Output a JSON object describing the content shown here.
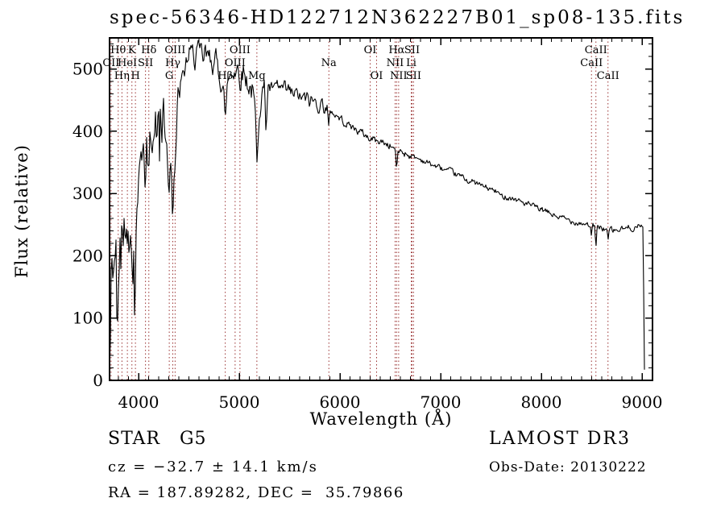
{
  "chart_data": {
    "type": "line",
    "title": "spec-56346-HD122712N362227B01_sp08-135.fits",
    "xlabel": "Wavelength (Å)",
    "ylabel": "Flux (relative)",
    "xlim": [
      3712,
      9104
    ],
    "ylim": [
      0,
      550
    ],
    "x_ticks": [
      4000,
      5000,
      6000,
      7000,
      8000,
      9000
    ],
    "x_minor_step": 100,
    "y_ticks": [
      0,
      100,
      200,
      300,
      400,
      500
    ],
    "y_minor_step": 20,
    "grid": false,
    "axis_color": "#000000",
    "line_marker_color": "#9b3333",
    "spectrum_color": "#000000",
    "spectral_lines": [
      {
        "label": "OII",
        "wavelength": 3727,
        "row": 2
      },
      {
        "label": "Hθ",
        "wavelength": 3798,
        "row": 1
      },
      {
        "label": "Hη",
        "wavelength": 3835,
        "row": 3
      },
      {
        "label": "HeI",
        "wavelength": 3889,
        "row": 2
      },
      {
        "label": "K",
        "wavelength": 3934,
        "row": 1
      },
      {
        "label": "H",
        "wavelength": 3969,
        "row": 3
      },
      {
        "label": "SII",
        "wavelength": 4069,
        "row": 2
      },
      {
        "label": "Hδ",
        "wavelength": 4102,
        "row": 1
      },
      {
        "label": "G",
        "wavelength": 4305,
        "row": 3
      },
      {
        "label": "Hγ",
        "wavelength": 4340,
        "row": 2
      },
      {
        "label": "OIII",
        "wavelength": 4363,
        "row": 1
      },
      {
        "label": "Hβ",
        "wavelength": 4861,
        "row": 3
      },
      {
        "label": "OIII",
        "wavelength": 4959,
        "row": 2
      },
      {
        "label": "OIII",
        "wavelength": 5007,
        "row": 1
      },
      {
        "label": "Mg",
        "wavelength": 5175,
        "row": 3
      },
      {
        "label": "Na",
        "wavelength": 5890,
        "row": 2
      },
      {
        "label": "OI",
        "wavelength": 6300,
        "row": 1
      },
      {
        "label": "OI",
        "wavelength": 6364,
        "row": 3
      },
      {
        "label": "NII",
        "wavelength": 6548,
        "row": 2
      },
      {
        "label": "Hα",
        "wavelength": 6563,
        "row": 1
      },
      {
        "label": "NII",
        "wavelength": 6583,
        "row": 3
      },
      {
        "label": "Li",
        "wavelength": 6708,
        "row": 2
      },
      {
        "label": "SII",
        "wavelength": 6716,
        "row": 1
      },
      {
        "label": "SII",
        "wavelength": 6731,
        "row": 3
      },
      {
        "label": "CaII",
        "wavelength": 8498,
        "row": 2
      },
      {
        "label": "CaII",
        "wavelength": 8542,
        "row": 1
      },
      {
        "label": "CaII",
        "wavelength": 8662,
        "row": 3
      }
    ],
    "spectrum": {
      "seed": 42,
      "anchors": [
        [
          3712,
          15
        ],
        [
          3716,
          120
        ],
        [
          3720,
          60
        ],
        [
          3726,
          200
        ],
        [
          3732,
          90
        ],
        [
          3738,
          235
        ],
        [
          3744,
          150
        ],
        [
          3750,
          225
        ],
        [
          3756,
          60
        ],
        [
          3762,
          210
        ],
        [
          3770,
          190
        ],
        [
          3778,
          235
        ],
        [
          3786,
          140
        ],
        [
          3798,
          150
        ],
        [
          3806,
          215
        ],
        [
          3814,
          240
        ],
        [
          3822,
          205
        ],
        [
          3830,
          250
        ],
        [
          3840,
          215
        ],
        [
          3850,
          255
        ],
        [
          3862,
          245
        ],
        [
          3874,
          260
        ],
        [
          3882,
          235
        ],
        [
          3889,
          215
        ],
        [
          3896,
          255
        ],
        [
          3905,
          245
        ],
        [
          3915,
          215
        ],
        [
          3925,
          195
        ],
        [
          3934,
          95
        ],
        [
          3944,
          215
        ],
        [
          3954,
          205
        ],
        [
          3962,
          150
        ],
        [
          3969,
          90
        ],
        [
          3978,
          225
        ],
        [
          3988,
          280
        ],
        [
          3998,
          320
        ],
        [
          4010,
          355
        ],
        [
          4025,
          385
        ],
        [
          4040,
          360
        ],
        [
          4055,
          340
        ],
        [
          4069,
          300
        ],
        [
          4080,
          370
        ],
        [
          4092,
          355
        ],
        [
          4102,
          300
        ],
        [
          4112,
          370
        ],
        [
          4125,
          395
        ],
        [
          4140,
          380
        ],
        [
          4155,
          405
        ],
        [
          4170,
          420
        ],
        [
          4185,
          395
        ],
        [
          4200,
          415
        ],
        [
          4215,
          430
        ],
        [
          4230,
          410
        ],
        [
          4245,
          425
        ],
        [
          4260,
          405
        ],
        [
          4275,
          390
        ],
        [
          4290,
          345
        ],
        [
          4305,
          300
        ],
        [
          4318,
          360
        ],
        [
          4332,
          330
        ],
        [
          4340,
          250
        ],
        [
          4352,
          345
        ],
        [
          4365,
          390
        ],
        [
          4380,
          425
        ],
        [
          4395,
          455
        ],
        [
          4410,
          465
        ],
        [
          4425,
          480
        ],
        [
          4440,
          475
        ],
        [
          4455,
          495
        ],
        [
          4470,
          505
        ],
        [
          4485,
          520
        ],
        [
          4500,
          515
        ],
        [
          4515,
          525
        ],
        [
          4530,
          510
        ],
        [
          4545,
          530
        ],
        [
          4560,
          520
        ],
        [
          4575,
          535
        ],
        [
          4590,
          525
        ],
        [
          4605,
          515
        ],
        [
          4620,
          520
        ],
        [
          4635,
          505
        ],
        [
          4650,
          515
        ],
        [
          4665,
          525
        ],
        [
          4680,
          510
        ],
        [
          4695,
          520
        ],
        [
          4710,
          515
        ],
        [
          4725,
          525
        ],
        [
          4740,
          515
        ],
        [
          4755,
          505
        ],
        [
          4770,
          510
        ],
        [
          4785,
          500
        ],
        [
          4800,
          495
        ],
        [
          4815,
          490
        ],
        [
          4830,
          485
        ],
        [
          4845,
          475
        ],
        [
          4861,
          395
        ],
        [
          4875,
          465
        ],
        [
          4890,
          480
        ],
        [
          4905,
          490
        ],
        [
          4920,
          495
        ],
        [
          4935,
          500
        ],
        [
          4950,
          505
        ],
        [
          4965,
          500
        ],
        [
          4980,
          505
        ],
        [
          4995,
          495
        ],
        [
          5010,
          490
        ],
        [
          5025,
          495
        ],
        [
          5040,
          500
        ],
        [
          5055,
          490
        ],
        [
          5070,
          485
        ],
        [
          5085,
          480
        ],
        [
          5100,
          475
        ],
        [
          5115,
          470
        ],
        [
          5130,
          465
        ],
        [
          5145,
          445
        ],
        [
          5160,
          420
        ],
        [
          5175,
          335
        ],
        [
          5188,
          400
        ],
        [
          5200,
          445
        ],
        [
          5215,
          460
        ],
        [
          5230,
          470
        ],
        [
          5245,
          465
        ],
        [
          5255,
          460
        ],
        [
          5266,
          395
        ],
        [
          5278,
          455
        ],
        [
          5290,
          475
        ],
        [
          5305,
          470
        ],
        [
          5320,
          465
        ],
        [
          5335,
          470
        ],
        [
          5350,
          462
        ],
        [
          5365,
          468
        ],
        [
          5380,
          472
        ],
        [
          5395,
          468
        ],
        [
          5410,
          465
        ],
        [
          5425,
          470
        ],
        [
          5440,
          462
        ],
        [
          5455,
          466
        ],
        [
          5470,
          460
        ],
        [
          5485,
          464
        ],
        [
          5500,
          462
        ],
        [
          5515,
          458
        ],
        [
          5530,
          462
        ],
        [
          5545,
          456
        ],
        [
          5560,
          460
        ],
        [
          5575,
          455
        ],
        [
          5590,
          458
        ],
        [
          5605,
          452
        ],
        [
          5620,
          455
        ],
        [
          5635,
          450
        ],
        [
          5650,
          453
        ],
        [
          5665,
          448
        ],
        [
          5680,
          452
        ],
        [
          5695,
          447
        ],
        [
          5710,
          450
        ],
        [
          5725,
          446
        ],
        [
          5740,
          449
        ],
        [
          5755,
          445
        ],
        [
          5770,
          448
        ],
        [
          5785,
          444
        ],
        [
          5800,
          447
        ],
        [
          5815,
          443
        ],
        [
          5830,
          445
        ],
        [
          5845,
          441
        ],
        [
          5860,
          440
        ],
        [
          5875,
          437
        ],
        [
          5890,
          392
        ],
        [
          5902,
          430
        ],
        [
          5915,
          433
        ],
        [
          5930,
          430
        ],
        [
          5945,
          428
        ],
        [
          5960,
          426
        ],
        [
          5975,
          424
        ],
        [
          5990,
          422
        ],
        [
          6010,
          420
        ],
        [
          6030,
          417
        ],
        [
          6050,
          415
        ],
        [
          6070,
          412
        ],
        [
          6090,
          410
        ],
        [
          6110,
          408
        ],
        [
          6130,
          406
        ],
        [
          6150,
          404
        ],
        [
          6170,
          402
        ],
        [
          6190,
          400
        ],
        [
          6210,
          398
        ],
        [
          6230,
          396
        ],
        [
          6250,
          394
        ],
        [
          6270,
          392
        ],
        [
          6290,
          390
        ],
        [
          6300,
          382
        ],
        [
          6310,
          389
        ],
        [
          6330,
          388
        ],
        [
          6350,
          387
        ],
        [
          6364,
          381
        ],
        [
          6378,
          386
        ],
        [
          6400,
          384
        ],
        [
          6420,
          383
        ],
        [
          6440,
          381
        ],
        [
          6460,
          380
        ],
        [
          6480,
          378
        ],
        [
          6500,
          377
        ],
        [
          6520,
          375
        ],
        [
          6540,
          372
        ],
        [
          6553,
          368
        ],
        [
          6563,
          328
        ],
        [
          6575,
          366
        ],
        [
          6590,
          369
        ],
        [
          6610,
          368
        ],
        [
          6630,
          366
        ],
        [
          6650,
          365
        ],
        [
          6670,
          364
        ],
        [
          6690,
          362
        ],
        [
          6710,
          361
        ],
        [
          6731,
          358
        ],
        [
          6750,
          358
        ],
        [
          6775,
          356
        ],
        [
          6800,
          355
        ],
        [
          6830,
          353
        ],
        [
          6860,
          350
        ],
        [
          6890,
          348
        ],
        [
          6920,
          346
        ],
        [
          6950,
          344
        ],
        [
          6980,
          342
        ],
        [
          7010,
          340
        ],
        [
          7040,
          338
        ],
        [
          7070,
          336
        ],
        [
          7100,
          334
        ],
        [
          7130,
          332
        ],
        [
          7160,
          330
        ],
        [
          7190,
          328
        ],
        [
          7220,
          326
        ],
        [
          7250,
          323
        ],
        [
          7280,
          321
        ],
        [
          7310,
          319
        ],
        [
          7340,
          317
        ],
        [
          7370,
          315
        ],
        [
          7400,
          313
        ],
        [
          7430,
          311
        ],
        [
          7460,
          309
        ],
        [
          7490,
          307
        ],
        [
          7520,
          305
        ],
        [
          7550,
          303
        ],
        [
          7580,
          300
        ],
        [
          7600,
          294
        ],
        [
          7620,
          296
        ],
        [
          7650,
          296
        ],
        [
          7680,
          294
        ],
        [
          7710,
          293
        ],
        [
          7740,
          291
        ],
        [
          7770,
          289
        ],
        [
          7800,
          287
        ],
        [
          7830,
          285
        ],
        [
          7860,
          283
        ],
        [
          7890,
          281
        ],
        [
          7920,
          279
        ],
        [
          7950,
          277
        ],
        [
          7980,
          275
        ],
        [
          8010,
          273
        ],
        [
          8040,
          271
        ],
        [
          8070,
          269
        ],
        [
          8100,
          267
        ],
        [
          8130,
          265
        ],
        [
          8160,
          263
        ],
        [
          8190,
          261
        ],
        [
          8220,
          260
        ],
        [
          8250,
          258
        ],
        [
          8280,
          257
        ],
        [
          8310,
          256
        ],
        [
          8340,
          255
        ],
        [
          8370,
          254
        ],
        [
          8400,
          253
        ],
        [
          8430,
          252
        ],
        [
          8460,
          251
        ],
        [
          8485,
          250
        ],
        [
          8498,
          225
        ],
        [
          8510,
          249
        ],
        [
          8530,
          248
        ],
        [
          8542,
          208
        ],
        [
          8556,
          247
        ],
        [
          8580,
          246
        ],
        [
          8605,
          245
        ],
        [
          8630,
          244
        ],
        [
          8650,
          243
        ],
        [
          8662,
          221
        ],
        [
          8676,
          242
        ],
        [
          8700,
          241
        ],
        [
          8730,
          240
        ],
        [
          8760,
          241
        ],
        [
          8790,
          242
        ],
        [
          8820,
          243
        ],
        [
          8850,
          244
        ],
        [
          8880,
          245
        ],
        [
          8910,
          246
        ],
        [
          8940,
          247
        ],
        [
          8970,
          246
        ],
        [
          9000,
          248
        ],
        [
          9008,
          246
        ],
        [
          9012,
          240
        ],
        [
          9016,
          150
        ],
        [
          9020,
          60
        ],
        [
          9024,
          20
        ],
        [
          9028,
          4
        ]
      ],
      "noise_bands": [
        [
          3712,
          3980,
          42
        ],
        [
          3980,
          4400,
          30
        ],
        [
          4400,
          5250,
          20
        ],
        [
          5250,
          5900,
          12
        ],
        [
          5900,
          6700,
          6
        ],
        [
          6700,
          7600,
          4.5
        ],
        [
          7600,
          8480,
          4.5
        ],
        [
          8480,
          9010,
          5
        ],
        [
          9010,
          9040,
          3
        ]
      ]
    }
  },
  "footer": {
    "class_line": "STAR   G5",
    "cz_line": "cz = −32.7 ± 14.1 km/s",
    "radec_line": "RA = 187.89282, DEC =  35.79866",
    "survey": "LAMOST DR3",
    "obsdate": "Obs-Date: 20130222"
  }
}
